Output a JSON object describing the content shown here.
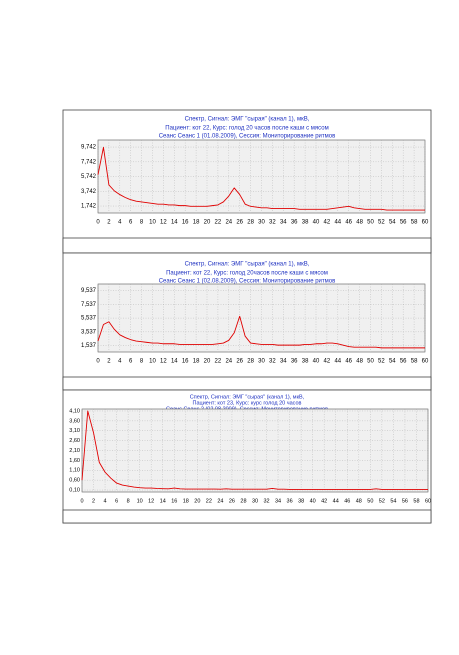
{
  "chart_data": [
    {
      "type": "line",
      "title_lines": [
        "Спектр, Сигнал: ЭМГ \"сырая\" (канал 1), мкВ,",
        "Пациент: кот 22, Курс: голод 20 часов после каши с мясом",
        "Сеанс Сеанс 1 (01.08.2009), Сессия:    Мониторирование  ритмов"
      ],
      "color": "#e00000",
      "grid": true,
      "xlim": [
        0,
        60
      ],
      "xticks": [
        0,
        2,
        4,
        6,
        8,
        10,
        12,
        14,
        16,
        18,
        20,
        22,
        24,
        26,
        28,
        30,
        32,
        34,
        36,
        38,
        40,
        42,
        44,
        46,
        48,
        50,
        52,
        54,
        56,
        58,
        60
      ],
      "ylim": [
        0.8,
        10.7
      ],
      "yticks": [
        {
          "value": 1.742,
          "label": "1,742"
        },
        {
          "value": 3.742,
          "label": "3,742"
        },
        {
          "value": 5.742,
          "label": "5,742"
        },
        {
          "value": 7.742,
          "label": "7,742"
        },
        {
          "value": 9.742,
          "label": "9,742"
        }
      ],
      "x": [
        0,
        1,
        2,
        3,
        4,
        5,
        6,
        7,
        8,
        9,
        10,
        11,
        12,
        13,
        14,
        15,
        16,
        17,
        18,
        19,
        20,
        21,
        22,
        23,
        24,
        25,
        26,
        27,
        28,
        29,
        30,
        31,
        32,
        33,
        34,
        35,
        36,
        37,
        38,
        39,
        40,
        41,
        42,
        43,
        44,
        45,
        46,
        47,
        48,
        49,
        50,
        51,
        52,
        53,
        54,
        55,
        56,
        57,
        58,
        59,
        60
      ],
      "values": [
        6.0,
        9.7,
        4.6,
        3.8,
        3.3,
        2.9,
        2.6,
        2.4,
        2.3,
        2.2,
        2.1,
        2.0,
        2.0,
        1.9,
        1.9,
        1.8,
        1.8,
        1.7,
        1.7,
        1.7,
        1.7,
        1.8,
        1.9,
        2.3,
        3.1,
        4.2,
        3.3,
        2.0,
        1.7,
        1.6,
        1.5,
        1.5,
        1.4,
        1.4,
        1.4,
        1.4,
        1.4,
        1.3,
        1.3,
        1.3,
        1.3,
        1.3,
        1.3,
        1.4,
        1.5,
        1.6,
        1.7,
        1.5,
        1.4,
        1.3,
        1.3,
        1.3,
        1.3,
        1.2,
        1.2,
        1.2,
        1.2,
        1.2,
        1.2,
        1.2,
        1.2
      ]
    },
    {
      "type": "line",
      "title_lines": [
        "Спектр, Сигнал: ЭМГ \"сырая\" (канал 1), мкВ,",
        "Пациент: кот 22, Курс: голод 20часов после каши с мясом",
        "Сеанс Сеанс 1 (02.08.2009), Сессия:    Мониторирование  ритмов"
      ],
      "color": "#e00000",
      "grid": true,
      "xlim": [
        0,
        60
      ],
      "xticks": [
        0,
        2,
        4,
        6,
        8,
        10,
        12,
        14,
        16,
        18,
        20,
        22,
        24,
        26,
        28,
        30,
        32,
        34,
        36,
        38,
        40,
        42,
        44,
        46,
        48,
        50,
        52,
        54,
        56,
        58,
        60
      ],
      "ylim": [
        0.6,
        10.5
      ],
      "yticks": [
        {
          "value": 1.537,
          "label": "1,537"
        },
        {
          "value": 3.537,
          "label": "3,537"
        },
        {
          "value": 5.537,
          "label": "5,537"
        },
        {
          "value": 7.537,
          "label": "7,537"
        },
        {
          "value": 9.537,
          "label": "9,537"
        }
      ],
      "x": [
        0,
        1,
        2,
        3,
        4,
        5,
        6,
        7,
        8,
        9,
        10,
        11,
        12,
        13,
        14,
        15,
        16,
        17,
        18,
        19,
        20,
        21,
        22,
        23,
        24,
        25,
        26,
        27,
        28,
        29,
        30,
        31,
        32,
        33,
        34,
        35,
        36,
        37,
        38,
        39,
        40,
        41,
        42,
        43,
        44,
        45,
        46,
        47,
        48,
        49,
        50,
        51,
        52,
        53,
        54,
        55,
        56,
        57,
        58,
        59,
        60
      ],
      "values": [
        2.2,
        4.6,
        5.0,
        3.9,
        3.1,
        2.7,
        2.4,
        2.2,
        2.1,
        2.0,
        1.9,
        1.9,
        1.8,
        1.8,
        1.8,
        1.7,
        1.7,
        1.7,
        1.7,
        1.7,
        1.7,
        1.7,
        1.8,
        1.9,
        2.3,
        3.4,
        5.8,
        2.9,
        1.9,
        1.8,
        1.7,
        1.7,
        1.7,
        1.6,
        1.6,
        1.6,
        1.6,
        1.6,
        1.7,
        1.7,
        1.8,
        1.8,
        1.9,
        1.9,
        1.8,
        1.6,
        1.4,
        1.3,
        1.3,
        1.3,
        1.3,
        1.3,
        1.2,
        1.2,
        1.2,
        1.2,
        1.2,
        1.2,
        1.2,
        1.2,
        1.2
      ]
    },
    {
      "type": "line",
      "title_lines": [
        "Спектр, Сигнал: ЭМГ \"сырая\" (канал 1), мкВ,",
        "Пациент: кот 23, Курс: курс голод 20 часов",
        "Сеанс Сеанс 2 (02.08.2009), Сессия:    Мониторирование  ритмов"
      ],
      "color": "#e00000",
      "grid": true,
      "xlim": [
        0,
        60
      ],
      "xticks": [
        0,
        2,
        4,
        6,
        8,
        10,
        12,
        14,
        16,
        18,
        20,
        22,
        24,
        26,
        28,
        30,
        32,
        34,
        36,
        38,
        40,
        42,
        44,
        46,
        48,
        50,
        52,
        54,
        56,
        58,
        60
      ],
      "ylim": [
        0,
        4.2
      ],
      "yticks": [
        {
          "value": 0.1,
          "label": "0,10"
        },
        {
          "value": 0.6,
          "label": "0,60"
        },
        {
          "value": 1.1,
          "label": "1,10"
        },
        {
          "value": 1.6,
          "label": "1,60"
        },
        {
          "value": 2.1,
          "label": "2,10"
        },
        {
          "value": 2.6,
          "label": "2,60"
        },
        {
          "value": 3.1,
          "label": "3,10"
        },
        {
          "value": 3.6,
          "label": "3,60"
        },
        {
          "value": 4.1,
          "label": "4,10"
        }
      ],
      "x": [
        0,
        1,
        2,
        3,
        4,
        5,
        6,
        7,
        8,
        9,
        10,
        11,
        12,
        13,
        14,
        15,
        16,
        17,
        18,
        19,
        20,
        21,
        22,
        23,
        24,
        25,
        26,
        27,
        28,
        29,
        30,
        31,
        32,
        33,
        34,
        35,
        36,
        37,
        38,
        39,
        40,
        41,
        42,
        43,
        44,
        45,
        46,
        47,
        48,
        49,
        50,
        51,
        52,
        53,
        54,
        55,
        56,
        57,
        58,
        59,
        60
      ],
      "values": [
        0.6,
        4.1,
        3.0,
        1.5,
        1.0,
        0.7,
        0.45,
        0.35,
        0.3,
        0.25,
        0.22,
        0.2,
        0.2,
        0.18,
        0.17,
        0.16,
        0.2,
        0.16,
        0.15,
        0.15,
        0.15,
        0.15,
        0.15,
        0.15,
        0.14,
        0.16,
        0.14,
        0.14,
        0.14,
        0.14,
        0.14,
        0.14,
        0.14,
        0.18,
        0.14,
        0.14,
        0.13,
        0.13,
        0.13,
        0.13,
        0.13,
        0.13,
        0.13,
        0.13,
        0.13,
        0.13,
        0.13,
        0.13,
        0.13,
        0.13,
        0.13,
        0.16,
        0.13,
        0.13,
        0.13,
        0.13,
        0.13,
        0.13,
        0.13,
        0.13,
        0.13
      ]
    }
  ]
}
